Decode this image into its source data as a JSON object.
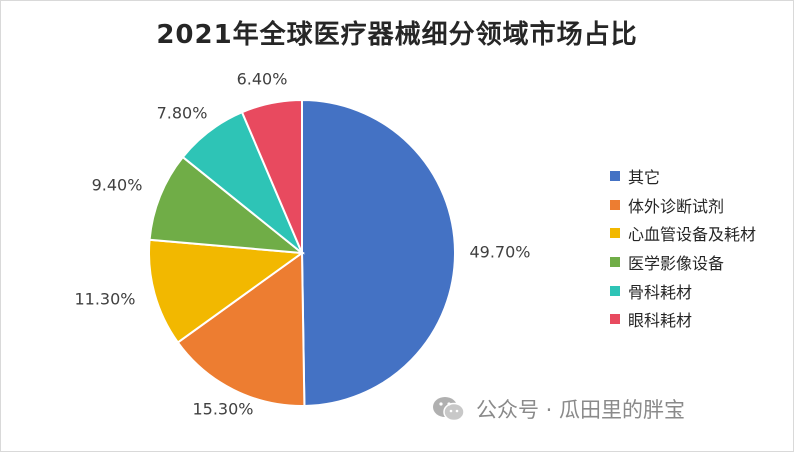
{
  "chart_data": {
    "type": "pie",
    "title": "2021年全球医疗器械细分领域市场占比",
    "categories": [
      "其它",
      "体外诊断试剂",
      "心血管设备及耗材",
      "医学影像设备",
      "骨科耗材",
      "眼科耗材"
    ],
    "values": [
      49.7,
      15.3,
      11.3,
      9.4,
      7.8,
      6.4
    ],
    "labels": [
      "49.70%",
      "15.30%",
      "11.30%",
      "9.40%",
      "7.80%",
      "6.40%"
    ],
    "colors": [
      "#4472c4",
      "#ed7d31",
      "#f2b800",
      "#70ad47",
      "#2ec4b6",
      "#e84a5f"
    ],
    "legend_position": "right"
  },
  "watermark": {
    "icon": "wechat-icon",
    "text": "公众号 · 瓜田里的胖宝"
  }
}
